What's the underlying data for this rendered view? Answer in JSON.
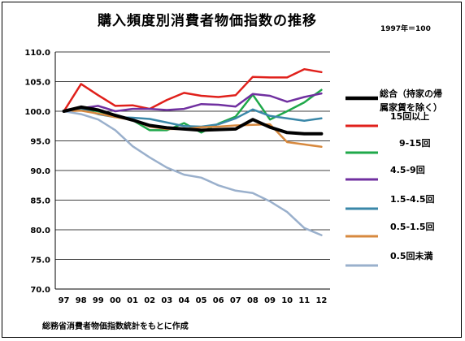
{
  "title": "購入頻度別消費者物価指数の推移",
  "base_note": "1997年＝100",
  "source": "総務省消費者物価指数統計をもとに作成",
  "chart_data": {
    "type": "line",
    "x": [
      "97",
      "98",
      "99",
      "00",
      "01",
      "02",
      "03",
      "04",
      "05",
      "06",
      "07",
      "08",
      "09",
      "10",
      "11",
      "12"
    ],
    "ylim": [
      70,
      110
    ],
    "yticks": [
      "70.0",
      "75.0",
      "80.0",
      "85.0",
      "90.0",
      "95.0",
      "100.0",
      "105.0",
      "110.0"
    ],
    "grid": "horizontal",
    "legend_position": "right",
    "series": [
      {
        "name_lines": [
          "総合（持家の帰",
          "属家賃を除く）"
        ],
        "color": "#000000",
        "width": 4,
        "values": [
          100.0,
          100.7,
          100.2,
          99.3,
          98.5,
          97.6,
          97.2,
          97.0,
          96.8,
          96.9,
          97.0,
          98.6,
          97.3,
          96.4,
          96.2,
          96.2
        ]
      },
      {
        "name_lines": [
          "15回以上"
        ],
        "color": "#e0201b",
        "width": 2.5,
        "values": [
          100.0,
          104.6,
          102.7,
          100.9,
          101.0,
          100.4,
          101.9,
          103.1,
          102.6,
          102.4,
          102.7,
          105.8,
          105.7,
          105.7,
          107.1,
          106.6
        ]
      },
      {
        "name_lines": [
          "　9-15回"
        ],
        "color": "#1fa84a",
        "width": 2.5,
        "values": [
          100.0,
          100.4,
          100.0,
          99.2,
          98.5,
          96.8,
          96.8,
          98.0,
          96.4,
          97.9,
          99.1,
          102.8,
          98.6,
          100.0,
          101.5,
          103.6
        ]
      },
      {
        "name_lines": [
          "4.5-9回"
        ],
        "color": "#7030a0",
        "width": 2.5,
        "values": [
          100.0,
          100.5,
          100.9,
          100.0,
          100.4,
          100.4,
          100.2,
          100.4,
          101.2,
          101.1,
          100.8,
          102.9,
          102.6,
          101.6,
          102.4,
          103.0
        ]
      },
      {
        "name_lines": [
          "1.5-4.5回"
        ],
        "color": "#3a87a8",
        "width": 2.5,
        "values": [
          100.0,
          100.4,
          99.5,
          99.0,
          98.9,
          98.7,
          98.1,
          97.5,
          97.4,
          97.8,
          98.8,
          100.3,
          99.2,
          98.8,
          98.4,
          98.8
        ]
      },
      {
        "name_lines": [
          "0.5-1.5回"
        ],
        "color": "#d7893f",
        "width": 2.5,
        "values": [
          100.0,
          100.1,
          99.6,
          99.0,
          98.5,
          97.4,
          97.0,
          97.0,
          97.3,
          97.4,
          97.6,
          97.7,
          97.8,
          94.8,
          94.4,
          94.0
        ]
      },
      {
        "name_lines": [
          "0.5回未満"
        ],
        "color": "#9ab0cc",
        "width": 2.5,
        "values": [
          100.0,
          99.5,
          98.6,
          96.8,
          94.1,
          92.2,
          90.5,
          89.3,
          88.8,
          87.5,
          86.6,
          86.2,
          84.8,
          83.0,
          80.3,
          79.1
        ]
      }
    ]
  }
}
